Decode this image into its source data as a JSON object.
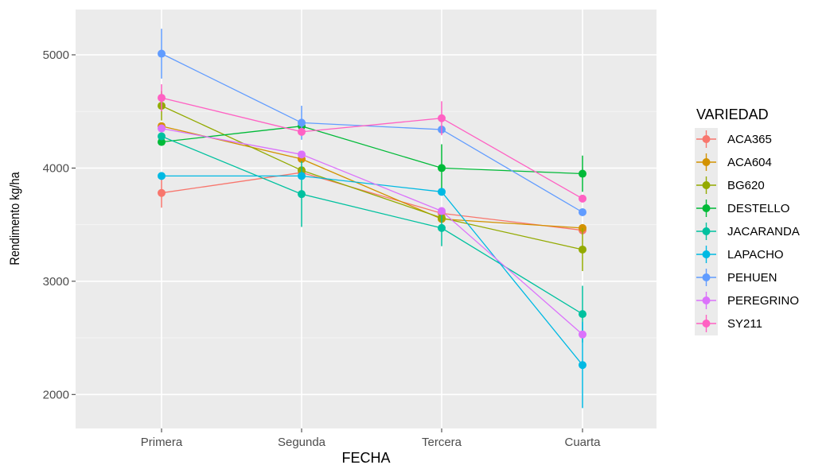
{
  "chart_data": {
    "type": "line",
    "xlabel": "FECHA",
    "ylabel": "Rendimento kg/ha",
    "categories": [
      "Primera",
      "Segunda",
      "Tercera",
      "Cuarta"
    ],
    "ylim": [
      1700,
      5400
    ],
    "yticks": [
      2000,
      3000,
      4000,
      5000
    ],
    "grid": true,
    "legend": {
      "title": "VARIEDAD",
      "position": "right"
    },
    "series": [
      {
        "name": "ACA365",
        "color": "#F8766D",
        "values": [
          3780,
          3960,
          3600,
          3450
        ],
        "errors": [
          130,
          0,
          0,
          0
        ]
      },
      {
        "name": "ACA604",
        "color": "#D39200",
        "values": [
          4370,
          4080,
          3550,
          3470
        ],
        "errors": [
          0,
          0,
          0,
          0
        ]
      },
      {
        "name": "BG620",
        "color": "#93AA00",
        "values": [
          4550,
          3980,
          3560,
          3280
        ],
        "errors": [
          130,
          0,
          0,
          190
        ]
      },
      {
        "name": "DESTELLO",
        "color": "#00BA38",
        "values": [
          4230,
          4370,
          4000,
          3950
        ],
        "errors": [
          0,
          0,
          210,
          160
        ]
      },
      {
        "name": "JACARANDA",
        "color": "#00C19F",
        "values": [
          4280,
          3770,
          3470,
          2710
        ],
        "errors": [
          0,
          290,
          160,
          250
        ]
      },
      {
        "name": "LAPACHO",
        "color": "#00B9E3",
        "values": [
          3930,
          3930,
          3790,
          2260
        ],
        "errors": [
          0,
          0,
          0,
          380
        ]
      },
      {
        "name": "PEHUEN",
        "color": "#619CFF",
        "values": [
          5010,
          4400,
          4340,
          3610
        ],
        "errors": [
          220,
          150,
          0,
          0
        ]
      },
      {
        "name": "PEREGRINO",
        "color": "#DB72FB",
        "values": [
          4350,
          4120,
          3620,
          2530
        ],
        "errors": [
          0,
          0,
          0,
          0
        ]
      },
      {
        "name": "SY211",
        "color": "#FF61C3",
        "values": [
          4620,
          4320,
          4440,
          3730
        ],
        "errors": [
          120,
          0,
          150,
          0
        ]
      }
    ]
  }
}
